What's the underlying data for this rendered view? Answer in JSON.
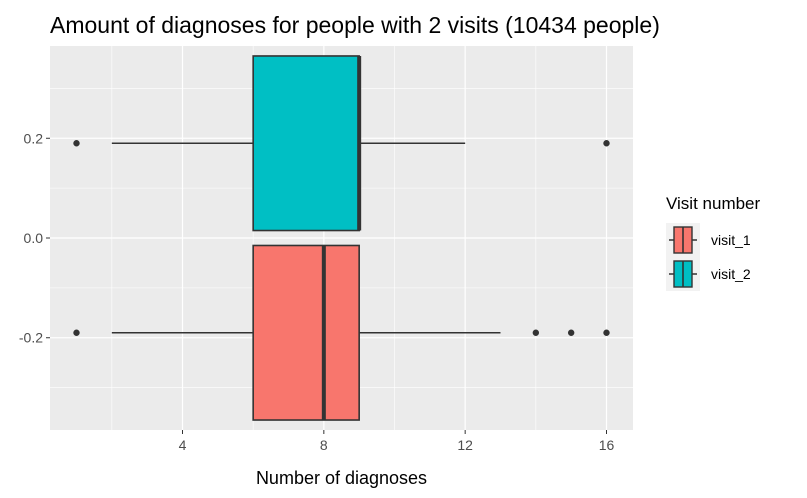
{
  "chart_data": {
    "type": "boxplot",
    "orientation": "horizontal",
    "title": "Amount of diagnoses for people with 2 visits (10434 people)",
    "xlabel": "Number of diagnoses",
    "ylabel": "",
    "xlim": [
      0.25,
      16.75
    ],
    "ylim": [
      -0.385,
      0.385
    ],
    "xticks": [
      4,
      8,
      12,
      16
    ],
    "xtick_labels": [
      "4",
      "8",
      "12",
      "16"
    ],
    "yticks": [
      -0.2,
      0.0,
      0.2
    ],
    "ytick_labels": [
      "-0.2",
      "0.0",
      "0.2"
    ],
    "grid": true,
    "background": "#ebebeb",
    "legend": {
      "title": "Visit number",
      "placement": "right",
      "entries": [
        {
          "label": "visit_1",
          "color": "#F8766D"
        },
        {
          "label": "visit_2",
          "color": "#00BFC4"
        }
      ]
    },
    "series": [
      {
        "name": "visit_1",
        "color": "#F8766D",
        "y_center": -0.19,
        "half_height": 0.175,
        "whisker_low": 2,
        "q1": 6,
        "median": 8,
        "q3": 9,
        "whisker_high": 13,
        "outliers": [
          1,
          14,
          15,
          16
        ]
      },
      {
        "name": "visit_2",
        "color": "#00BFC4",
        "y_center": 0.19,
        "half_height": 0.175,
        "whisker_low": 2,
        "q1": 6,
        "median": 9,
        "q3": 9,
        "whisker_high": 12,
        "outliers": [
          1,
          16
        ]
      }
    ]
  }
}
